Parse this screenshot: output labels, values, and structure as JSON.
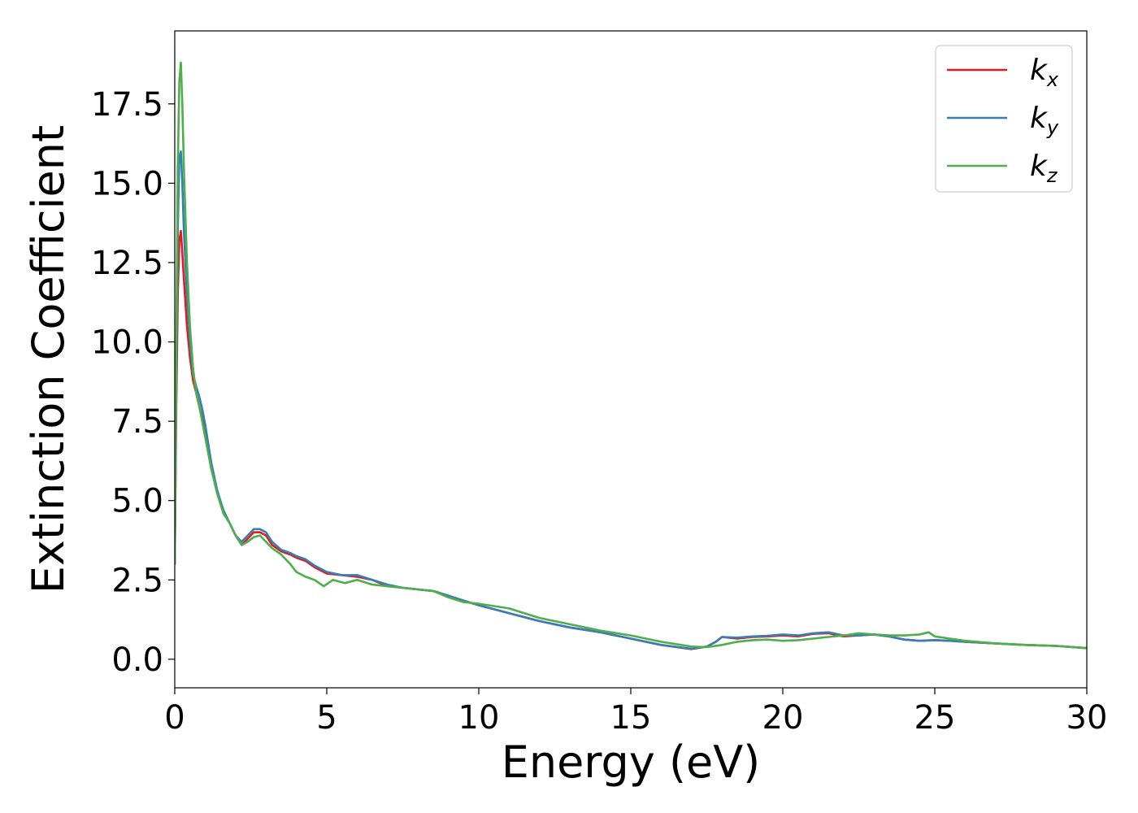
{
  "chart_data": {
    "type": "line",
    "title": "",
    "xlabel": "Energy (eV)",
    "ylabel": "Extinction Coefficient",
    "xlim": [
      0,
      30
    ],
    "ylim": [
      -0.9,
      19.8
    ],
    "xticks": [
      0,
      5,
      10,
      15,
      20,
      25,
      30
    ],
    "xtick_labels": [
      "0",
      "5",
      "10",
      "15",
      "20",
      "25",
      "30"
    ],
    "yticks": [
      0.0,
      2.5,
      5.0,
      7.5,
      10.0,
      12.5,
      15.0,
      17.5
    ],
    "ytick_labels": [
      "0.0",
      "2.5",
      "5.0",
      "7.5",
      "10.0",
      "12.5",
      "15.0",
      "17.5"
    ],
    "grid": false,
    "legend_position": "top-right",
    "series": [
      {
        "name": "k",
        "subscript": "x",
        "color": "#e41a1c",
        "x": [
          0,
          0.05,
          0.1,
          0.15,
          0.2,
          0.25,
          0.3,
          0.4,
          0.5,
          0.6,
          0.7,
          0.8,
          0.9,
          1.0,
          1.2,
          1.4,
          1.6,
          1.8,
          2.0,
          2.2,
          2.4,
          2.6,
          2.8,
          3.0,
          3.2,
          3.5,
          3.8,
          4.0,
          4.3,
          4.6,
          5.0,
          5.5,
          6.0,
          6.5,
          7.0,
          7.5,
          8.0,
          8.5,
          9.0,
          9.5,
          10.0,
          11.0,
          12.0,
          13.0,
          14.0,
          15.0,
          16.0,
          17.0,
          17.5,
          17.8,
          18.0,
          18.5,
          19.0,
          19.5,
          20.0,
          20.5,
          21.0,
          21.5,
          22.0,
          22.5,
          23.0,
          23.5,
          24.0,
          24.5,
          25.0,
          25.5,
          26.0,
          27.0,
          28.0,
          29.0,
          30.0
        ],
        "y": [
          3.0,
          8.0,
          11.5,
          13.2,
          13.5,
          12.8,
          12.0,
          10.5,
          9.5,
          8.8,
          8.4,
          8.0,
          7.6,
          7.2,
          6.0,
          5.3,
          4.6,
          4.3,
          3.9,
          3.6,
          3.8,
          4.0,
          4.0,
          3.9,
          3.6,
          3.4,
          3.3,
          3.2,
          3.1,
          2.9,
          2.7,
          2.65,
          2.6,
          2.5,
          2.3,
          2.25,
          2.2,
          2.15,
          2.0,
          1.85,
          1.7,
          1.45,
          1.2,
          1.0,
          0.85,
          0.65,
          0.45,
          0.32,
          0.4,
          0.55,
          0.7,
          0.65,
          0.7,
          0.72,
          0.75,
          0.72,
          0.8,
          0.82,
          0.72,
          0.75,
          0.78,
          0.72,
          0.62,
          0.58,
          0.6,
          0.58,
          0.55,
          0.5,
          0.45,
          0.42,
          0.35
        ]
      },
      {
        "name": "k",
        "subscript": "y",
        "color": "#377eb8",
        "x": [
          0,
          0.05,
          0.1,
          0.15,
          0.2,
          0.25,
          0.3,
          0.4,
          0.5,
          0.6,
          0.7,
          0.8,
          0.9,
          1.0,
          1.2,
          1.4,
          1.6,
          1.8,
          2.0,
          2.2,
          2.4,
          2.6,
          2.8,
          3.0,
          3.2,
          3.5,
          3.8,
          4.0,
          4.3,
          4.6,
          5.0,
          5.5,
          6.0,
          6.5,
          7.0,
          7.5,
          8.0,
          8.5,
          9.0,
          9.5,
          10.0,
          11.0,
          12.0,
          13.0,
          14.0,
          15.0,
          16.0,
          17.0,
          17.5,
          17.8,
          18.0,
          18.5,
          19.0,
          19.5,
          20.0,
          20.5,
          21.0,
          21.5,
          22.0,
          22.5,
          23.0,
          23.5,
          24.0,
          24.5,
          25.0,
          25.5,
          26.0,
          27.0,
          28.0,
          29.0,
          30.0
        ],
        "y": [
          3.0,
          9.0,
          13.5,
          15.8,
          16.0,
          15.0,
          13.5,
          11.5,
          10.0,
          9.0,
          8.6,
          8.3,
          7.9,
          7.4,
          6.2,
          5.3,
          4.7,
          4.3,
          3.9,
          3.7,
          3.9,
          4.1,
          4.1,
          4.0,
          3.7,
          3.45,
          3.35,
          3.25,
          3.15,
          2.95,
          2.75,
          2.65,
          2.65,
          2.5,
          2.35,
          2.25,
          2.2,
          2.15,
          2.0,
          1.85,
          1.7,
          1.45,
          1.2,
          1.0,
          0.85,
          0.65,
          0.45,
          0.33,
          0.4,
          0.55,
          0.7,
          0.68,
          0.72,
          0.74,
          0.78,
          0.75,
          0.82,
          0.85,
          0.75,
          0.75,
          0.78,
          0.72,
          0.62,
          0.58,
          0.6,
          0.58,
          0.55,
          0.5,
          0.45,
          0.42,
          0.35
        ]
      },
      {
        "name": "k",
        "subscript": "z",
        "color": "#4daf4a",
        "x": [
          0,
          0.05,
          0.1,
          0.15,
          0.2,
          0.25,
          0.3,
          0.4,
          0.5,
          0.6,
          0.7,
          0.8,
          0.9,
          1.0,
          1.2,
          1.4,
          1.6,
          1.8,
          2.0,
          2.2,
          2.4,
          2.6,
          2.8,
          3.0,
          3.2,
          3.5,
          3.8,
          4.0,
          4.3,
          4.6,
          4.9,
          5.2,
          5.6,
          6.0,
          6.5,
          7.0,
          7.5,
          8.0,
          8.5,
          9.0,
          9.5,
          10.0,
          11.0,
          12.0,
          13.0,
          14.0,
          15.0,
          16.0,
          17.0,
          17.5,
          18.0,
          18.5,
          19.0,
          19.5,
          20.0,
          20.5,
          21.0,
          21.5,
          22.0,
          22.5,
          23.0,
          23.5,
          24.0,
          24.5,
          24.8,
          25.0,
          25.5,
          26.0,
          27.0,
          28.0,
          29.0,
          30.0
        ],
        "y": [
          3.0,
          10.0,
          15.5,
          18.2,
          18.8,
          17.5,
          15.5,
          12.5,
          10.5,
          9.2,
          8.4,
          8.0,
          7.5,
          7.0,
          6.0,
          5.2,
          4.6,
          4.3,
          3.9,
          3.6,
          3.7,
          3.85,
          3.9,
          3.7,
          3.5,
          3.3,
          3.0,
          2.75,
          2.6,
          2.5,
          2.3,
          2.5,
          2.4,
          2.5,
          2.35,
          2.3,
          2.25,
          2.2,
          2.15,
          1.95,
          1.8,
          1.75,
          1.6,
          1.3,
          1.1,
          0.9,
          0.75,
          0.55,
          0.4,
          0.38,
          0.45,
          0.55,
          0.6,
          0.62,
          0.58,
          0.6,
          0.65,
          0.7,
          0.75,
          0.82,
          0.78,
          0.75,
          0.75,
          0.78,
          0.85,
          0.72,
          0.65,
          0.58,
          0.5,
          0.45,
          0.42,
          0.35
        ]
      }
    ]
  }
}
